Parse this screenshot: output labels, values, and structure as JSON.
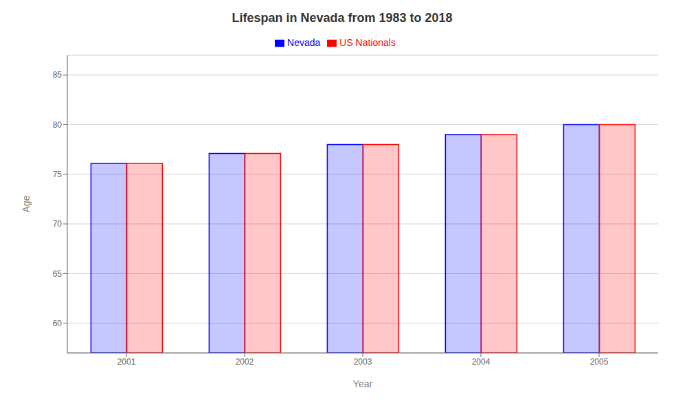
{
  "chart_data": {
    "type": "bar",
    "title": "Lifespan in Nevada from 1983 to 2018",
    "xlabel": "Year",
    "ylabel": "Age",
    "categories": [
      "2001",
      "2002",
      "2003",
      "2004",
      "2005"
    ],
    "series": [
      {
        "name": "Nevada",
        "color": "#0000ff",
        "values": [
          76.1,
          77.1,
          78.0,
          79.0,
          80.0
        ]
      },
      {
        "name": "US Nationals",
        "color": "#ff0000",
        "values": [
          76.1,
          77.1,
          78.0,
          79.0,
          80.0
        ]
      }
    ],
    "ylim": [
      57,
      87
    ],
    "yticks": [
      60,
      65,
      70,
      75,
      80,
      85
    ],
    "grid": true,
    "legend": "top"
  }
}
